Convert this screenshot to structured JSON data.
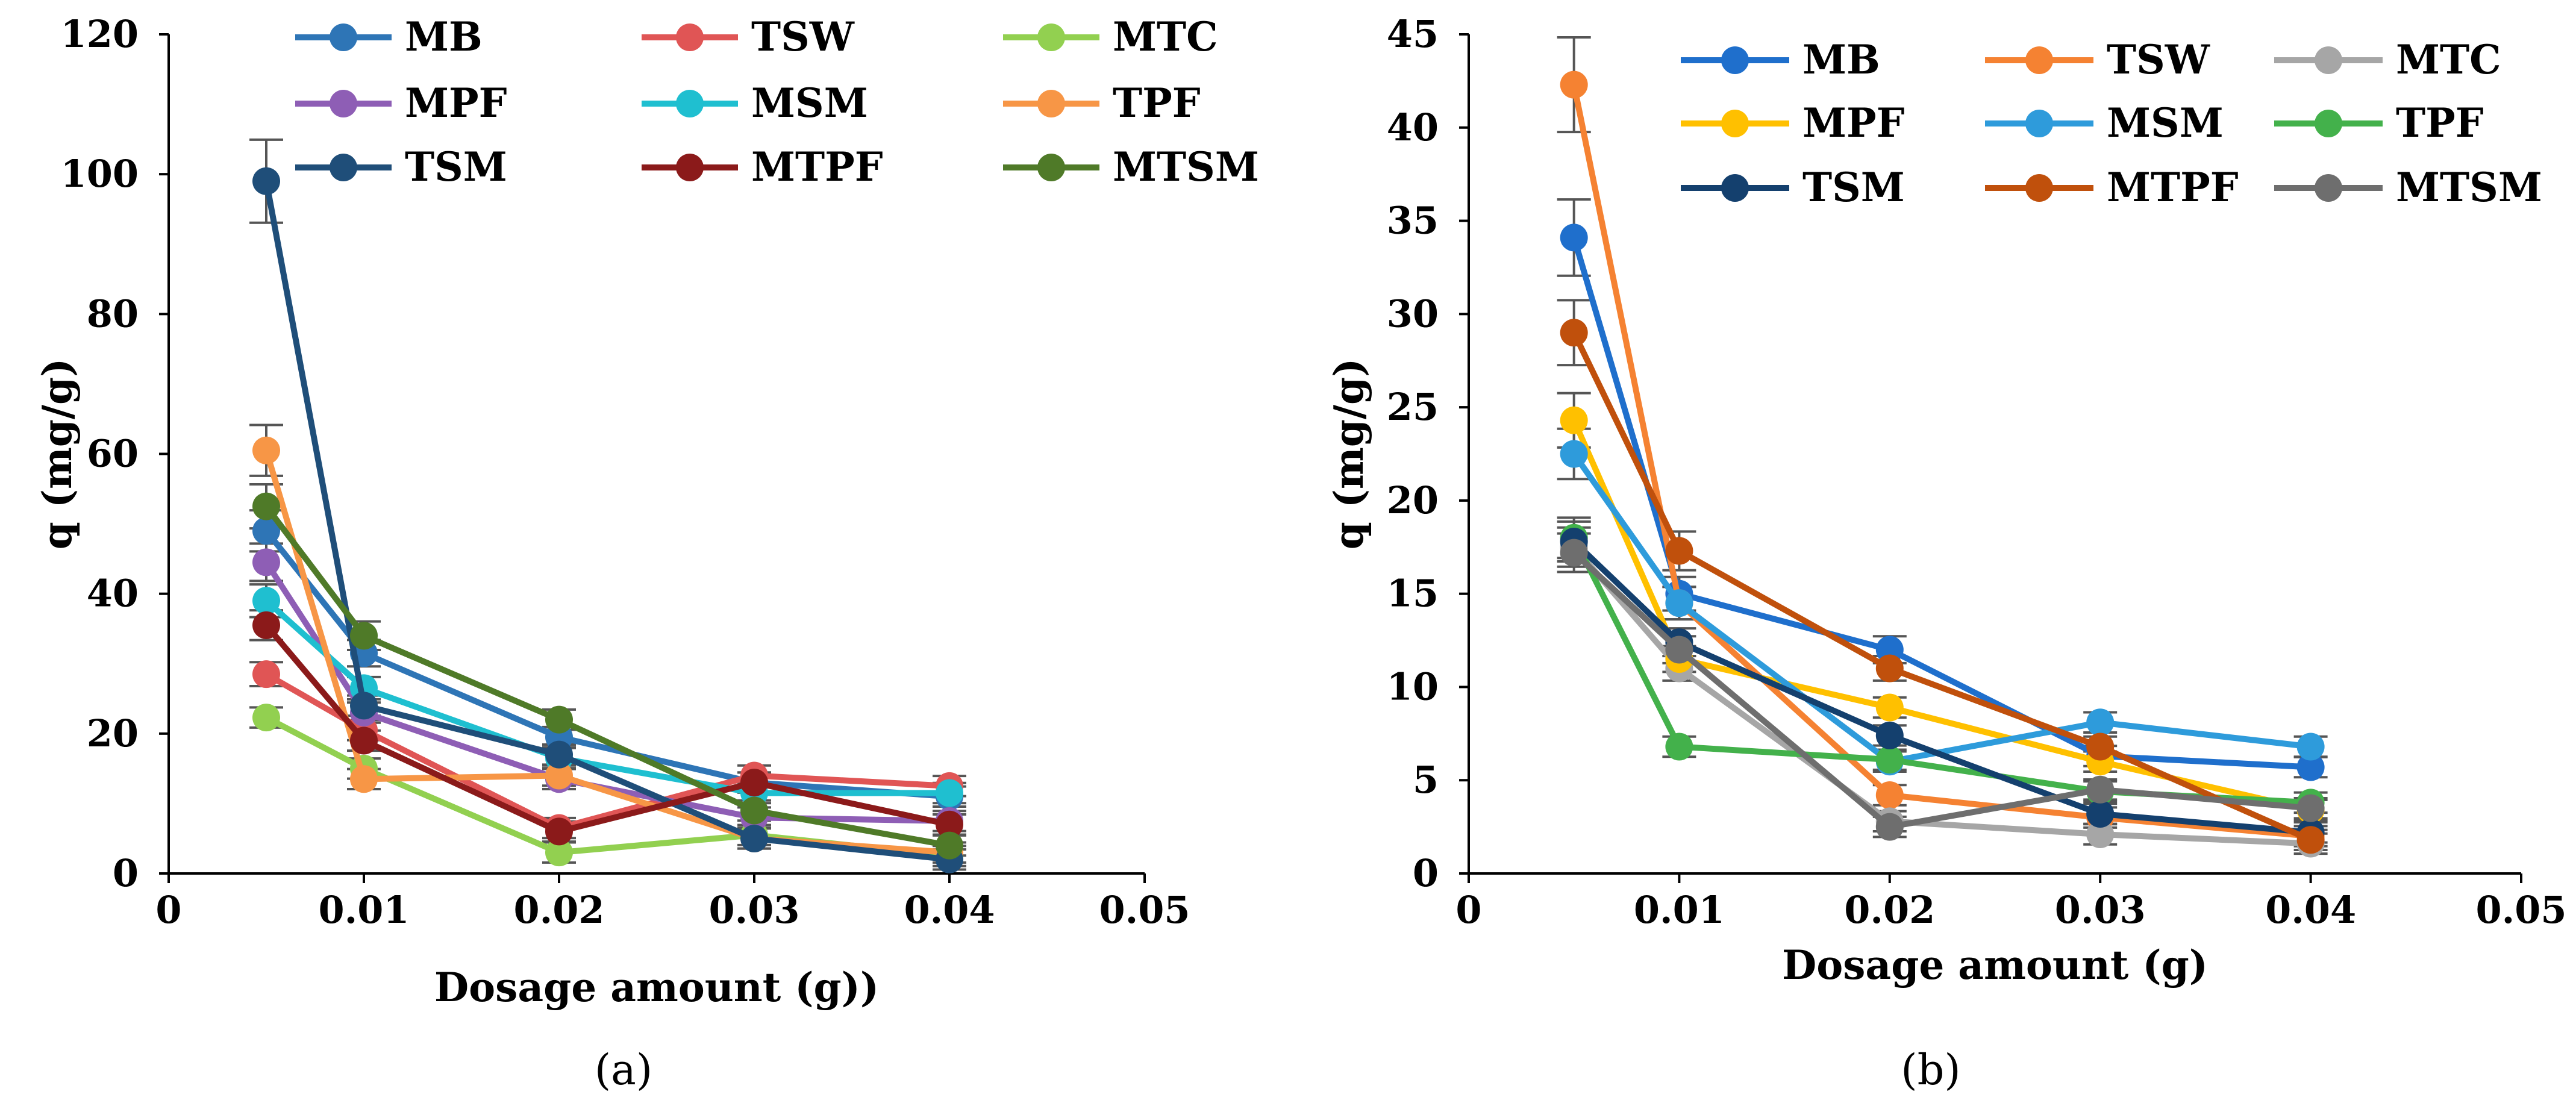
{
  "figure": {
    "caption_a": "(a)",
    "caption_b": "(b)"
  },
  "chart_data": [
    {
      "type": "line",
      "panel": "a",
      "title": "",
      "xlabel": "Dosage amount (g))",
      "ylabel": "q (mg/g)",
      "xlim": [
        0,
        0.05
      ],
      "ylim": [
        0,
        120
      ],
      "xticks": [
        0,
        0.01,
        0.02,
        0.03,
        0.04,
        0.05
      ],
      "xtick_labels": [
        "0",
        "0.01",
        "0.02",
        "0.03",
        "0.04",
        "0.05"
      ],
      "yticks": [
        0,
        20,
        40,
        60,
        80,
        100,
        120
      ],
      "ytick_labels": [
        "0",
        "20",
        "40",
        "60",
        "80",
        "100",
        "120"
      ],
      "grid": false,
      "legend_position": "top",
      "x": [
        0.005,
        0.01,
        0.02,
        0.03,
        0.04
      ],
      "series": [
        {
          "name": "MB",
          "color": "#2E75B6",
          "values": [
            49,
            31.5,
            19.5,
            13,
            11
          ]
        },
        {
          "name": "TSW",
          "color": "#E05555",
          "values": [
            28.5,
            20.5,
            6.5,
            14,
            12.5
          ]
        },
        {
          "name": "MTC",
          "color": "#92D050",
          "values": [
            22.3,
            15,
            3,
            5.5,
            2.5
          ]
        },
        {
          "name": "MPF",
          "color": "#8E5EB5",
          "values": [
            44.5,
            23,
            13.5,
            8,
            7.5
          ]
        },
        {
          "name": "MSM",
          "color": "#1FBFD0",
          "values": [
            39,
            26.5,
            16.5,
            11.5,
            11.5
          ]
        },
        {
          "name": "TPF",
          "color": "#F79646",
          "values": [
            60.5,
            13.5,
            14,
            5,
            3
          ]
        },
        {
          "name": "TSM",
          "color": "#1F4E79",
          "values": [
            99,
            24,
            17,
            5,
            2
          ]
        },
        {
          "name": "MTPF",
          "color": "#8B1A1A",
          "values": [
            35.5,
            19,
            6,
            13,
            7
          ]
        },
        {
          "name": "MTSM",
          "color": "#4F7A28",
          "values": [
            52.5,
            34,
            22,
            9,
            4
          ]
        }
      ]
    },
    {
      "type": "line",
      "panel": "b",
      "title": "",
      "xlabel": "Dosage amount (g)",
      "ylabel": "q (mg/g)",
      "xlim": [
        0,
        0.05
      ],
      "ylim": [
        0,
        45
      ],
      "xticks": [
        0,
        0.01,
        0.02,
        0.03,
        0.04,
        0.05
      ],
      "xtick_labels": [
        "0",
        "0.01",
        "0.02",
        "0.03",
        "0.04",
        "0.05"
      ],
      "yticks": [
        0,
        5,
        10,
        15,
        20,
        25,
        30,
        35,
        40,
        45
      ],
      "ytick_labels": [
        "0",
        "5",
        "10",
        "15",
        "20",
        "25",
        "30",
        "35",
        "40",
        "45"
      ],
      "grid": false,
      "legend_position": "top",
      "x": [
        0.005,
        0.01,
        0.02,
        0.03,
        0.04
      ],
      "series": [
        {
          "name": "MB",
          "color": "#1F6FCC",
          "values": [
            34.1,
            15,
            12,
            6.3,
            5.7
          ]
        },
        {
          "name": "TSW",
          "color": "#F58232",
          "values": [
            42.3,
            14.5,
            4.2,
            3,
            2
          ]
        },
        {
          "name": "MTC",
          "color": "#A6A6A6",
          "values": [
            17.5,
            11,
            2.8,
            2.1,
            1.6
          ]
        },
        {
          "name": "MPF",
          "color": "#FFC000",
          "values": [
            24.3,
            11.5,
            8.9,
            6,
            3.4
          ]
        },
        {
          "name": "MSM",
          "color": "#2E9BDB",
          "values": [
            22.5,
            14.5,
            6,
            8.1,
            6.8
          ]
        },
        {
          "name": "TPF",
          "color": "#43B14B",
          "values": [
            18,
            6.8,
            6.1,
            4.4,
            3.8
          ]
        },
        {
          "name": "TSM",
          "color": "#14406E",
          "values": [
            17.8,
            12.4,
            7.4,
            3.2,
            2.2
          ]
        },
        {
          "name": "MTPF",
          "color": "#C0500C",
          "values": [
            29,
            17.3,
            11,
            6.8,
            1.8
          ]
        },
        {
          "name": "MTSM",
          "color": "#6E6E6E",
          "values": [
            17.2,
            12,
            2.5,
            4.5,
            3.5
          ]
        }
      ]
    }
  ]
}
